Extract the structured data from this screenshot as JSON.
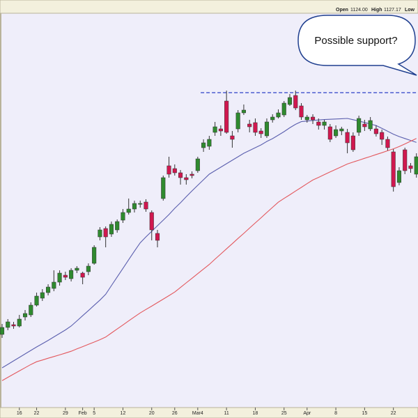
{
  "chart_data": {
    "type": "candlestick",
    "header": [
      "Open",
      "1124.00",
      "High",
      "1127.17",
      "Low"
    ],
    "annotation": "Possible support?",
    "up_color": "#2f8a2f",
    "down_color": "#d0184f",
    "ylim": [
      942.5,
      1225
    ],
    "hline": {
      "value": 1168.5,
      "color": "#2b3fc8"
    },
    "categories": [
      null,
      null,
      null,
      "16",
      null,
      null,
      "22",
      null,
      null,
      null,
      null,
      "29",
      null,
      null,
      "Feb",
      null,
      "5",
      null,
      null,
      null,
      null,
      "12",
      null,
      null,
      null,
      null,
      "20",
      null,
      null,
      null,
      "26",
      null,
      null,
      null,
      "Mar4",
      null,
      null,
      null,
      null,
      "11",
      null,
      null,
      null,
      null,
      "18",
      null,
      null,
      null,
      null,
      "25",
      null,
      null,
      null,
      "Apr",
      null,
      null,
      null,
      null,
      "8",
      null,
      null,
      null,
      null,
      "15",
      null,
      null,
      null,
      null,
      "22",
      null,
      null,
      null,
      null
    ],
    "open": [
      995,
      1000,
      1002,
      1001,
      1007.5,
      1009,
      1016,
      1021,
      1025,
      1028,
      1032.5,
      1037.5,
      1035,
      1041,
      1039,
      1040,
      1046,
      1065,
      1071,
      1067,
      1070,
      1077,
      1082.5,
      1085,
      1089,
      1090,
      1082.5,
      1067.5,
      1092.5,
      1116,
      1114,
      1111,
      1107.5,
      1110,
      1112.5,
      1129,
      1130,
      1140,
      1142.5,
      1162.5,
      1137.5,
      1142.5,
      1154,
      1146,
      1147,
      1141,
      1137.5,
      1149,
      1151,
      1152.5,
      1160,
      1166.5,
      1159,
      1149,
      1151,
      1147.5,
      1145,
      1144,
      1137.5,
      1141,
      1140,
      1137.5,
      1140,
      1146,
      1142.5,
      1142.5,
      1140,
      1135,
      1126,
      1104,
      1127.5,
      1116,
      1110
    ],
    "close": [
      1000,
      1004,
      1001,
      1006,
      1010,
      1016,
      1022.5,
      1025,
      1029,
      1032.5,
      1039,
      1036,
      1041,
      1042.5,
      1036,
      1044,
      1057.5,
      1070,
      1065,
      1074,
      1076,
      1082.5,
      1085,
      1089,
      1089,
      1085,
      1070,
      1062.5,
      1107.5,
      1110,
      1111,
      1107.5,
      1106,
      1109,
      1121,
      1132.5,
      1135,
      1144,
      1141,
      1140,
      1135,
      1154,
      1156,
      1144,
      1140,
      1139,
      1147.5,
      1151,
      1154,
      1161,
      1165,
      1157.5,
      1151,
      1151,
      1149,
      1145,
      1147.5,
      1135,
      1142,
      1142.5,
      1132.5,
      1127.5,
      1150,
      1144,
      1148.5,
      1139,
      1135,
      1129,
      1101,
      1112.5,
      1112.5,
      1114,
      1122.5
    ],
    "high": [
      1002.5,
      1006,
      1004,
      1009,
      1012.5,
      1018,
      1025,
      1027.5,
      1031,
      1041,
      1041,
      1040,
      1042.5,
      1044,
      1040,
      1046,
      1059,
      1072,
      1072.5,
      1076,
      1077.5,
      1085,
      1092.5,
      1091,
      1091,
      1092,
      1084,
      1070,
      1109,
      1122.5,
      1117,
      1113,
      1110,
      1112,
      1122.5,
      1135,
      1137.5,
      1147.5,
      1145,
      1170,
      1141,
      1156,
      1160,
      1149,
      1150,
      1143,
      1150,
      1153,
      1156.5,
      1162.5,
      1167.5,
      1170,
      1161,
      1152.5,
      1153,
      1150,
      1149,
      1146,
      1145,
      1144,
      1142.5,
      1140,
      1152,
      1149,
      1151,
      1145,
      1142,
      1137,
      1128,
      1115,
      1129,
      1118,
      1125
    ],
    "low": [
      992.5,
      998,
      999,
      1000,
      1005,
      1007.5,
      1015,
      1019,
      1023,
      1026,
      1030,
      1034,
      1033,
      1039,
      1031,
      1037.5,
      1045,
      1062.5,
      1057.5,
      1065,
      1068,
      1075,
      1081,
      1082.5,
      1086,
      1083,
      1062.5,
      1057.5,
      1091,
      1107.5,
      1109,
      1102.5,
      1102.5,
      1107,
      1111,
      1126,
      1127.5,
      1137.5,
      1137.5,
      1139,
      1129,
      1140,
      1152.5,
      1140,
      1137.5,
      1136,
      1136,
      1147,
      1150,
      1151,
      1159,
      1156,
      1149,
      1147,
      1146,
      1142,
      1142,
      1133,
      1136,
      1138,
      1125,
      1126,
      1137.5,
      1141,
      1141,
      1137,
      1131,
      1127,
      1097.5,
      1102,
      1110,
      1111,
      1107.5
    ],
    "series": [
      {
        "color": "#5b5fae",
        "values": [
          971,
          973.5,
          976,
          978.5,
          981,
          983.5,
          986,
          988.3,
          990.7,
          993.2,
          995.7,
          998.2,
          1001,
          1004.7,
          1008.4,
          1012.1,
          1015.9,
          1019.6,
          1023.8,
          1030,
          1036.2,
          1042.4,
          1048.6,
          1054.8,
          1060.7,
          1065,
          1069,
          1073,
          1077,
          1081,
          1085.5,
          1089.5,
          1093.8,
          1098,
          1102,
          1106,
          1110,
          1112.5,
          1115,
          1117.5,
          1120,
          1122.5,
          1125,
          1127,
          1129,
          1131,
          1133.5,
          1135.5,
          1138,
          1140.5,
          1143.3,
          1145.8,
          1147.7,
          1148.1,
          1148.5,
          1148.9,
          1149.2,
          1149.4,
          1149.6,
          1149.8,
          1150,
          1149.1,
          1148.1,
          1147.1,
          1146,
          1144.9,
          1142.9,
          1140.8,
          1138.7,
          1137,
          1135.6,
          1134.2,
          1132.8
        ]
      },
      {
        "color": "#e3585d",
        "values": [
          961.8,
          964.2,
          966.5,
          968.8,
          971.1,
          973.4,
          975.4,
          976.6,
          977.9,
          979.1,
          980.3,
          981.6,
          982.9,
          984.6,
          986.2,
          987.9,
          989.5,
          991.2,
          993.1,
          996,
          998.9,
          1001.8,
          1004.7,
          1007.6,
          1010.4,
          1012.9,
          1015.3,
          1017.8,
          1020.3,
          1022.8,
          1025.4,
          1028.7,
          1032,
          1035.3,
          1038.6,
          1041.9,
          1045.2,
          1049,
          1052.7,
          1056.4,
          1060.1,
          1063.9,
          1067.5,
          1071.3,
          1075,
          1078.7,
          1082.5,
          1086.2,
          1089.9,
          1092.6,
          1095.2,
          1097.9,
          1100.5,
          1103.2,
          1105.8,
          1107.7,
          1109.7,
          1111.6,
          1113.5,
          1115.4,
          1117.3,
          1118.7,
          1120,
          1121.4,
          1122.7,
          1124.1,
          1125.4,
          1126.8,
          1128.2,
          1129.8,
          1131.7,
          1133.7,
          1135.6
        ]
      }
    ]
  }
}
